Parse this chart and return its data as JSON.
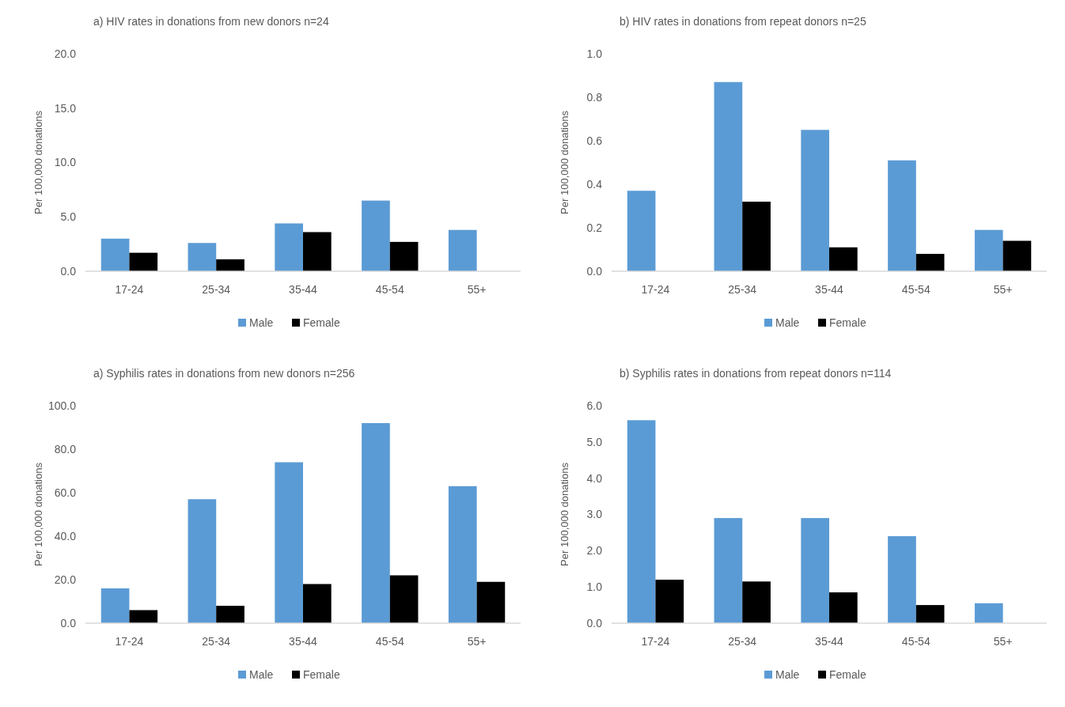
{
  "chart_data": [
    {
      "type": "bar",
      "title": "a) HIV rates in donations from new donors  n=24",
      "ylabel": "Per 100,000 donations",
      "categories": [
        "17-24",
        "25-34",
        "35-44",
        "45-54",
        "55+"
      ],
      "series": [
        {
          "name": "Male",
          "color": "#5b9bd5",
          "values": [
            3.0,
            2.6,
            4.4,
            6.5,
            3.8
          ]
        },
        {
          "name": "Female",
          "color": "#000000",
          "values": [
            1.7,
            1.1,
            3.6,
            2.7,
            0
          ]
        }
      ],
      "ylim": [
        0,
        20
      ],
      "yticks": [
        {
          "value": 0,
          "label": "0.0"
        },
        {
          "value": 5,
          "label": "5.0"
        },
        {
          "value": 10,
          "label": "10.0"
        },
        {
          "value": 15,
          "label": "15.0"
        },
        {
          "value": 20,
          "label": "20.0"
        }
      ],
      "grid": false,
      "legend": "bottom"
    },
    {
      "type": "bar",
      "title": "b) HIV rates in donations from repeat donors n=25",
      "ylabel": "Per 100,000 donations",
      "categories": [
        "17-24",
        "25-34",
        "35-44",
        "45-54",
        "55+"
      ],
      "series": [
        {
          "name": "Male",
          "color": "#5b9bd5",
          "values": [
            0.37,
            0.87,
            0.65,
            0.51,
            0.19
          ]
        },
        {
          "name": "Female",
          "color": "#000000",
          "values": [
            0,
            0.32,
            0.11,
            0.08,
            0.14
          ]
        }
      ],
      "ylim": [
        0,
        1
      ],
      "yticks": [
        {
          "value": 0,
          "label": "0.0"
        },
        {
          "value": 0.2,
          "label": "0.2"
        },
        {
          "value": 0.4,
          "label": "0.4"
        },
        {
          "value": 0.6,
          "label": "0.6"
        },
        {
          "value": 0.8,
          "label": "0.8"
        },
        {
          "value": 1,
          "label": "1.0"
        }
      ],
      "grid": false,
      "legend": "bottom"
    },
    {
      "type": "bar",
      "title": "a) Syphilis rates in donations from new donors  n=256",
      "ylabel": "Per 100,000 donations",
      "categories": [
        "17-24",
        "25-34",
        "35-44",
        "45-54",
        "55+"
      ],
      "series": [
        {
          "name": "Male",
          "color": "#5b9bd5",
          "values": [
            16,
            57,
            74,
            92,
            63
          ]
        },
        {
          "name": "Female",
          "color": "#000000",
          "values": [
            6,
            8,
            18,
            22,
            19
          ]
        }
      ],
      "ylim": [
        0,
        100
      ],
      "yticks": [
        {
          "value": 0,
          "label": "0.0"
        },
        {
          "value": 20,
          "label": "20.0"
        },
        {
          "value": 40,
          "label": "40.0"
        },
        {
          "value": 60,
          "label": "60.0"
        },
        {
          "value": 80,
          "label": "80.0"
        },
        {
          "value": 100,
          "label": "100.0"
        }
      ],
      "grid": false,
      "legend": "bottom"
    },
    {
      "type": "bar",
      "title": "b) Syphilis rates in donations from repeat donors n=114",
      "ylabel": "Per 100,000 donations",
      "categories": [
        "17-24",
        "25-34",
        "35-44",
        "45-54",
        "55+"
      ],
      "series": [
        {
          "name": "Male",
          "color": "#5b9bd5",
          "values": [
            5.6,
            2.9,
            2.9,
            2.4,
            0.55
          ]
        },
        {
          "name": "Female",
          "color": "#000000",
          "values": [
            1.2,
            1.15,
            0.85,
            0.5,
            0
          ]
        }
      ],
      "ylim": [
        0,
        6
      ],
      "yticks": [
        {
          "value": 0,
          "label": "0.0"
        },
        {
          "value": 1,
          "label": "1.0"
        },
        {
          "value": 2,
          "label": "2.0"
        },
        {
          "value": 3,
          "label": "3.0"
        },
        {
          "value": 4,
          "label": "4.0"
        },
        {
          "value": 5,
          "label": "5.0"
        },
        {
          "value": 6,
          "label": "6.0"
        }
      ],
      "grid": false,
      "legend": "bottom"
    }
  ]
}
